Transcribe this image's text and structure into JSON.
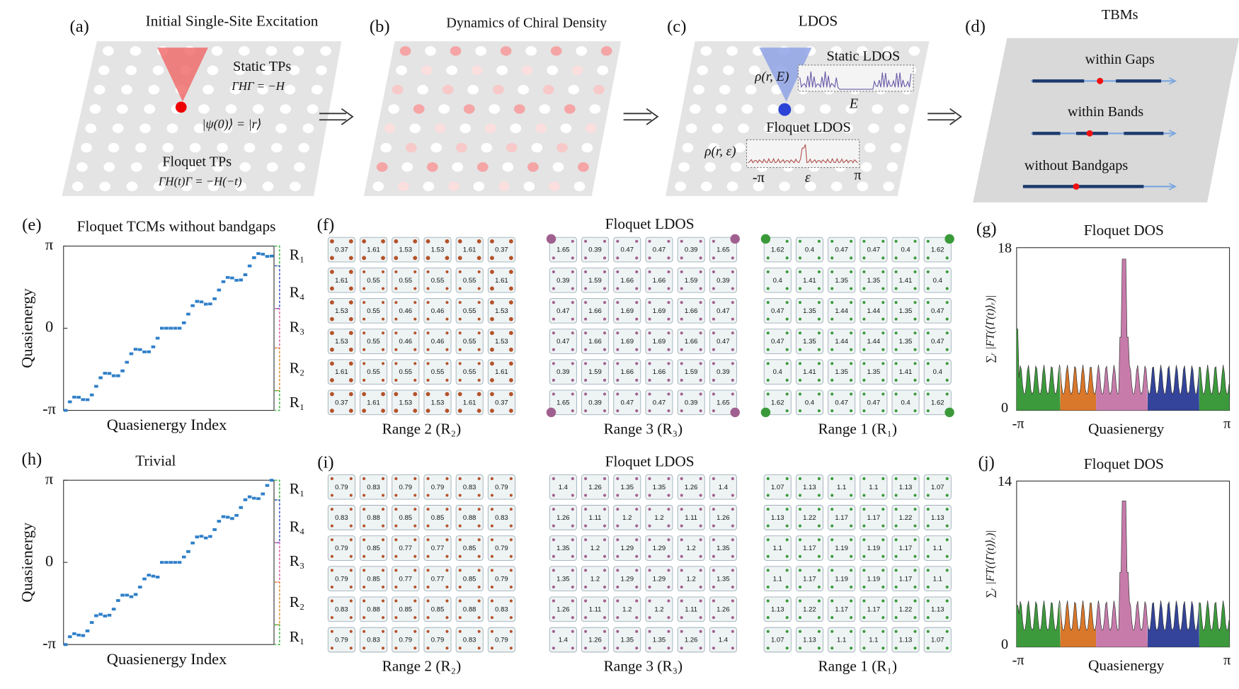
{
  "a": {
    "label": "(a)",
    "title": "Initial Single-Site Excitation",
    "static": "Static TPs",
    "static_eq": "ΓHΓ = −H",
    "state": "|ψ(0)⟩ = |r⟩",
    "floquet": "Floquet TPs",
    "floquet_eq": "ΓH(t)Γ = −H(−t)"
  },
  "b": {
    "label": "(b)",
    "title": "Dynamics of Chiral Density"
  },
  "c": {
    "label": "(c)",
    "title": "LDOS",
    "static": "Static LDOS",
    "rho_E": "ρ(r, E)",
    "E": "E",
    "floquet": "Floquet LDOS",
    "rho_eps": "ρ(r, ε)",
    "x_min": "-π",
    "x_mid": "ε",
    "x_max": "π"
  },
  "d": {
    "label": "(d)",
    "title": "TBMs",
    "items": [
      "within Gaps",
      "within Bands",
      "without Bandgaps"
    ]
  },
  "e": {
    "label": "(e)",
    "title": "Floquet TCMs without bandgaps",
    "ylabel": "Quasienergy",
    "xlabel": "Quasienergy Index",
    "yticks": [
      "π",
      "0",
      "-π"
    ],
    "ranges": [
      "R₁",
      "R₄",
      "R₃",
      "R₂",
      "R₁"
    ]
  },
  "f": {
    "label": "(f)",
    "title": "Floquet LDOS",
    "grids": [
      {
        "caption": "Range 2 (R₂)",
        "values": [
          [
            0.37,
            1.61,
            1.53,
            1.53,
            1.61,
            0.37
          ],
          [
            1.61,
            0.55,
            0.55,
            0.55,
            0.55,
            1.61
          ],
          [
            1.53,
            0.55,
            0.46,
            0.46,
            0.55,
            1.53
          ],
          [
            1.53,
            0.55,
            0.46,
            0.46,
            0.55,
            1.53
          ],
          [
            1.61,
            0.55,
            0.55,
            0.55,
            0.55,
            1.61
          ],
          [
            0.37,
            1.61,
            1.53,
            1.53,
            1.61,
            0.37
          ]
        ]
      },
      {
        "caption": "Range 3 (R₃)",
        "values": [
          [
            1.65,
            0.39,
            0.47,
            0.47,
            0.39,
            1.65
          ],
          [
            0.39,
            1.59,
            1.66,
            1.66,
            1.59,
            0.39
          ],
          [
            0.47,
            1.66,
            1.69,
            1.69,
            1.66,
            0.47
          ],
          [
            0.47,
            1.66,
            1.69,
            1.69,
            1.66,
            0.47
          ],
          [
            0.39,
            1.59,
            1.66,
            1.66,
            1.59,
            0.39
          ],
          [
            1.65,
            0.39,
            0.47,
            0.47,
            0.39,
            1.65
          ]
        ]
      },
      {
        "caption": "Range 1 (R₁)",
        "values": [
          [
            1.62,
            0.4,
            0.47,
            0.47,
            0.4,
            1.62
          ],
          [
            0.4,
            1.41,
            1.35,
            1.35,
            1.41,
            0.4
          ],
          [
            0.47,
            1.35,
            1.44,
            1.44,
            1.35,
            0.47
          ],
          [
            0.47,
            1.35,
            1.44,
            1.44,
            1.35,
            0.47
          ],
          [
            0.4,
            1.41,
            1.35,
            1.35,
            1.41,
            0.4
          ],
          [
            1.62,
            0.4,
            0.47,
            0.47,
            0.4,
            1.62
          ]
        ]
      }
    ]
  },
  "g": {
    "label": "(g)",
    "title": "Floquet DOS",
    "ylabel": "∑ᵣ |FT(⟨Γ(t)⟩ᵣ)|",
    "xlabel": "Quasienergy",
    "yticks": [
      18,
      0
    ],
    "xticks": [
      "-π",
      "π"
    ]
  },
  "h": {
    "label": "(h)",
    "title": "Trivial",
    "ylabel": "Quasienergy",
    "xlabel": "Quasienergy Index",
    "yticks": [
      "π",
      "0",
      "-π"
    ],
    "ranges": [
      "R₁",
      "R₄",
      "R₃",
      "R₂",
      "R₁"
    ]
  },
  "i": {
    "label": "(i)",
    "title": "Floquet LDOS",
    "grids": [
      {
        "caption": "Range 2 (R₂)",
        "values": [
          [
            0.79,
            0.83,
            0.79,
            0.79,
            0.83,
            0.79
          ],
          [
            0.83,
            0.88,
            0.85,
            0.85,
            0.88,
            0.83
          ],
          [
            0.79,
            0.85,
            0.77,
            0.77,
            0.85,
            0.79
          ],
          [
            0.79,
            0.85,
            0.77,
            0.77,
            0.85,
            0.79
          ],
          [
            0.83,
            0.88,
            0.85,
            0.85,
            0.88,
            0.83
          ],
          [
            0.79,
            0.83,
            0.79,
            0.79,
            0.83,
            0.79
          ]
        ]
      },
      {
        "caption": "Range 3 (R₃)",
        "values": [
          [
            1.4,
            1.26,
            1.35,
            1.35,
            1.26,
            1.4
          ],
          [
            1.26,
            1.11,
            1.2,
            1.2,
            1.11,
            1.26
          ],
          [
            1.35,
            1.2,
            1.29,
            1.29,
            1.2,
            1.35
          ],
          [
            1.35,
            1.2,
            1.29,
            1.29,
            1.2,
            1.35
          ],
          [
            1.26,
            1.11,
            1.2,
            1.2,
            1.11,
            1.26
          ],
          [
            1.4,
            1.26,
            1.35,
            1.35,
            1.26,
            1.4
          ]
        ]
      },
      {
        "caption": "Range 1 (R₁)",
        "values": [
          [
            1.07,
            1.13,
            1.1,
            1.1,
            1.13,
            1.07
          ],
          [
            1.13,
            1.22,
            1.17,
            1.17,
            1.22,
            1.13
          ],
          [
            1.1,
            1.17,
            1.19,
            1.19,
            1.17,
            1.1
          ],
          [
            1.1,
            1.17,
            1.19,
            1.19,
            1.17,
            1.1
          ],
          [
            1.13,
            1.22,
            1.17,
            1.17,
            1.22,
            1.13
          ],
          [
            1.07,
            1.13,
            1.1,
            1.1,
            1.13,
            1.07
          ]
        ]
      }
    ]
  },
  "j": {
    "label": "(j)",
    "title": "Floquet DOS",
    "ylabel": "∑ᵣ |FT(⟨Γ(t)⟩ᵣ)|",
    "xlabel": "Quasienergy",
    "yticks": [
      14,
      0
    ],
    "xticks": [
      "-π",
      "π"
    ]
  }
}
